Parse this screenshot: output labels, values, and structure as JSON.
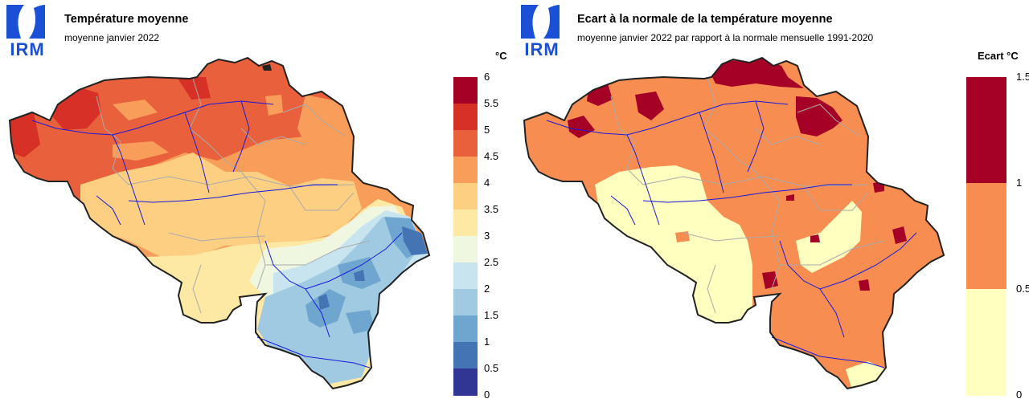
{
  "logo": {
    "text": "IRM",
    "color": "#1b4fd6"
  },
  "left_panel": {
    "title": "Température moyenne",
    "subtitle": "moyenne janvier 2022",
    "legend": {
      "unit": "°C",
      "ticks": [
        "6",
        "5.5",
        "5",
        "4.5",
        "4",
        "3.5",
        "3",
        "2.5",
        "2",
        "1.5",
        "1",
        "0.5",
        "0"
      ],
      "colors": [
        "#a50026",
        "#d73027",
        "#e8603c",
        "#f99e5a",
        "#fdcf82",
        "#fee9a4",
        "#f0f7e0",
        "#c8e4ef",
        "#9fcae1",
        "#6fa6cf",
        "#4574b4",
        "#313695"
      ]
    }
  },
  "right_panel": {
    "title": "Ecart à la normale de la température moyenne",
    "subtitle": "moyenne janvier 2022 par rapport à la normale mensuelle 1991-2020",
    "legend": {
      "unit": "Ecart °C",
      "ticks": [
        "1.5",
        "1",
        "0.5",
        "0"
      ],
      "colors": [
        "#a50026",
        "#f88d52",
        "#ffffbf"
      ]
    }
  },
  "map_style": {
    "border_color": "#222222",
    "province_color": "#aaaaaa",
    "river_color": "#1a1adb"
  }
}
